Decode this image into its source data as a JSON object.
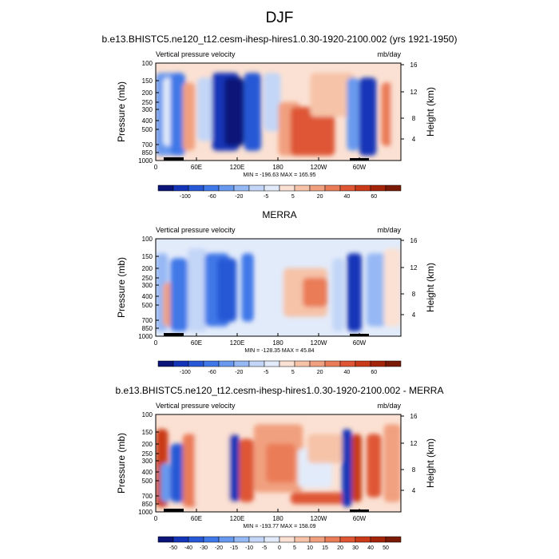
{
  "page": {
    "title": "DJF"
  },
  "chart_data": [
    {
      "type": "heatmap",
      "title": "b.e13.BHISTC5.ne120_t12.cesm-ihesp-hires1.0.30-1920-2100.002 (yrs 1921-1950)",
      "left_string": "Vertical pressure velocity",
      "right_string": "mb/day",
      "ylabel": "Pressure (mb)",
      "ylabel_right": "Height (km)",
      "x_ticks": [
        "0",
        "60E",
        "120E",
        "180",
        "120W",
        "60W"
      ],
      "y_ticks": [
        "100",
        "150",
        "200",
        "250",
        "300",
        "400",
        "500",
        "700",
        "850",
        "1000"
      ],
      "y_ticks_right": [
        "16",
        "12",
        "8",
        "4"
      ],
      "stats": "MIN = -196.63  MAX = 165.95",
      "colorbar_labels": [
        "-100",
        "-60",
        "-20",
        "-5",
        "5",
        "20",
        "40",
        "60"
      ],
      "colorbar_colors": [
        "#0b1478",
        "#1535b8",
        "#2758d6",
        "#3f78e8",
        "#6899ef",
        "#96b8f4",
        "#c3d6f7",
        "#e2ebfa",
        "#fbe1d3",
        "#f6c3a8",
        "#f1a07f",
        "#ea7c58",
        "#de5634",
        "#c93a18",
        "#a4240a",
        "#7a1a06"
      ]
    },
    {
      "type": "heatmap",
      "title": "MERRA",
      "left_string": "Vertical pressure velocity",
      "right_string": "mb/day",
      "ylabel": "Pressure (mb)",
      "ylabel_right": "Height (km)",
      "x_ticks": [
        "0",
        "60E",
        "120E",
        "180",
        "120W",
        "60W"
      ],
      "y_ticks": [
        "100",
        "150",
        "200",
        "250",
        "300",
        "400",
        "500",
        "700",
        "850",
        "1000"
      ],
      "y_ticks_right": [
        "16",
        "12",
        "8",
        "4"
      ],
      "stats": "MIN = -128.35  MAX = 45.84",
      "colorbar_labels": [
        "-100",
        "-60",
        "-20",
        "-5",
        "5",
        "20",
        "40",
        "60"
      ],
      "colorbar_colors": [
        "#0b1478",
        "#1535b8",
        "#2758d6",
        "#3f78e8",
        "#6899ef",
        "#96b8f4",
        "#c3d6f7",
        "#e2ebfa",
        "#fbe1d3",
        "#f6c3a8",
        "#f1a07f",
        "#ea7c58",
        "#de5634",
        "#c93a18",
        "#a4240a",
        "#7a1a06"
      ]
    },
    {
      "type": "heatmap",
      "title": "b.e13.BHISTC5.ne120_t12.cesm-ihesp-hires1.0.30-1920-2100.002 - MERRA",
      "left_string": "Vertical pressure velocity",
      "right_string": "mb/day",
      "ylabel": "Pressure (mb)",
      "ylabel_right": "Height (km)",
      "x_ticks": [
        "0",
        "60E",
        "120E",
        "180",
        "120W",
        "60W"
      ],
      "y_ticks": [
        "100",
        "150",
        "200",
        "250",
        "300",
        "400",
        "500",
        "700",
        "850",
        "1000"
      ],
      "y_ticks_right": [
        "16",
        "12",
        "8",
        "4"
      ],
      "stats": "MIN = -193.77  MAX = 158.09",
      "colorbar_labels": [
        "-50",
        "-40",
        "-30",
        "-20",
        "-15",
        "-10",
        "-5",
        "0",
        "5",
        "10",
        "15",
        "20",
        "30",
        "40",
        "50"
      ],
      "colorbar_colors": [
        "#0b1478",
        "#1535b8",
        "#2758d6",
        "#3f78e8",
        "#6899ef",
        "#96b8f4",
        "#c3d6f7",
        "#e2ebfa",
        "#fbe1d3",
        "#f6c3a8",
        "#f1a07f",
        "#ea7c58",
        "#de5634",
        "#c93a18",
        "#a4240a",
        "#7a1a06"
      ]
    }
  ]
}
